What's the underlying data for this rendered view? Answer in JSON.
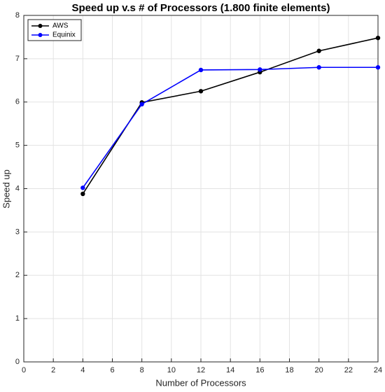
{
  "chart_data": {
    "type": "line",
    "title": "Speed up v.s # of Processors (1.800 finite elements)",
    "xlabel": "Number of Processors",
    "ylabel": "Speed up",
    "x": [
      4,
      8,
      12,
      16,
      20,
      24
    ],
    "series": [
      {
        "name": "AWS",
        "color": "#000000",
        "values": [
          3.88,
          5.99,
          6.25,
          6.69,
          7.18,
          7.48
        ]
      },
      {
        "name": "Equinix",
        "color": "#0000ff",
        "values": [
          4.02,
          5.95,
          6.74,
          6.75,
          6.8,
          6.8
        ]
      }
    ],
    "xlim": [
      0,
      24
    ],
    "xticks": [
      0,
      2,
      4,
      6,
      8,
      10,
      12,
      14,
      16,
      18,
      20,
      22,
      24
    ],
    "ylim": [
      0,
      8
    ],
    "yticks": [
      0,
      1,
      2,
      3,
      4,
      5,
      6,
      7,
      8
    ],
    "grid": true,
    "legend": "upper left"
  }
}
